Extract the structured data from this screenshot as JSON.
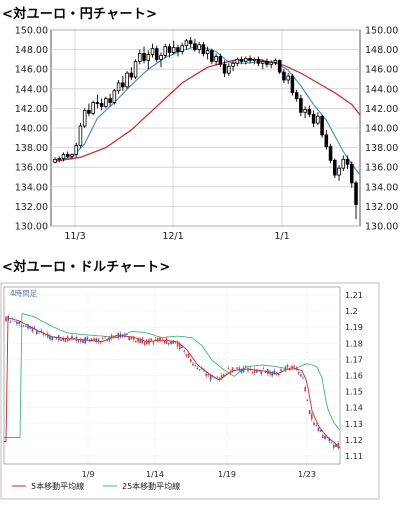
{
  "chart_data": [
    {
      "type": "candlestick",
      "title": "<対ユーロ・円チャート>",
      "y_ticks": [
        150.0,
        148.0,
        146.0,
        144.0,
        142.0,
        140.0,
        138.0,
        136.0,
        134.0,
        132.0,
        130.0
      ],
      "ylim": [
        130,
        150
      ],
      "x_ticks": [
        "11/3",
        "12/1",
        "1/1"
      ],
      "grid": true,
      "candles": [
        [
          136.5,
          137.0,
          136.4,
          136.8
        ],
        [
          136.8,
          137.1,
          136.5,
          136.9
        ],
        [
          136.9,
          137.5,
          136.6,
          137.3
        ],
        [
          137.3,
          137.6,
          136.9,
          137.1
        ],
        [
          137.1,
          137.4,
          136.8,
          137.3
        ],
        [
          137.3,
          138.5,
          137.0,
          138.2
        ],
        [
          138.2,
          140.5,
          138.0,
          140.2
        ],
        [
          140.2,
          142.0,
          140.0,
          141.8
        ],
        [
          141.8,
          142.5,
          141.2,
          141.5
        ],
        [
          141.5,
          142.8,
          141.3,
          142.6
        ],
        [
          142.6,
          143.4,
          142.0,
          142.5
        ],
        [
          142.5,
          143.0,
          141.8,
          142.2
        ],
        [
          142.2,
          143.2,
          142.0,
          143.0
        ],
        [
          143.0,
          143.5,
          142.2,
          142.6
        ],
        [
          142.6,
          144.0,
          142.4,
          143.8
        ],
        [
          143.8,
          144.9,
          143.5,
          144.6
        ],
        [
          144.6,
          145.3,
          143.8,
          144.2
        ],
        [
          144.2,
          145.8,
          144.0,
          145.6
        ],
        [
          145.6,
          146.2,
          144.9,
          145.2
        ],
        [
          145.2,
          147.0,
          145.0,
          146.8
        ],
        [
          146.8,
          148.0,
          146.5,
          147.6
        ],
        [
          147.6,
          148.3,
          146.6,
          146.9
        ],
        [
          146.9,
          147.9,
          146.0,
          147.5
        ],
        [
          147.5,
          148.6,
          147.2,
          148.1
        ],
        [
          148.1,
          148.4,
          146.7,
          147.0
        ],
        [
          147.0,
          147.7,
          146.2,
          147.4
        ],
        [
          147.4,
          148.6,
          147.1,
          148.3
        ],
        [
          148.3,
          148.6,
          147.2,
          147.7
        ],
        [
          147.7,
          148.9,
          147.5,
          148.2
        ],
        [
          148.2,
          148.5,
          147.3,
          147.8
        ],
        [
          147.8,
          148.7,
          147.5,
          148.4
        ],
        [
          148.4,
          149.1,
          148.0,
          148.9
        ],
        [
          148.9,
          149.3,
          148.2,
          148.6
        ],
        [
          148.6,
          149.1,
          147.8,
          148.0
        ],
        [
          148.0,
          148.8,
          147.6,
          148.5
        ],
        [
          148.5,
          148.8,
          147.3,
          147.6
        ],
        [
          147.6,
          148.3,
          147.0,
          147.9
        ],
        [
          147.9,
          148.1,
          146.5,
          146.8
        ],
        [
          146.8,
          147.6,
          146.4,
          147.3
        ],
        [
          147.3,
          147.6,
          146.2,
          146.5
        ],
        [
          146.5,
          146.9,
          145.2,
          145.6
        ],
        [
          145.6,
          146.6,
          145.3,
          146.3
        ],
        [
          146.3,
          146.9,
          145.8,
          146.6
        ],
        [
          146.6,
          147.2,
          146.3,
          147.0
        ],
        [
          147.0,
          147.3,
          146.5,
          146.8
        ],
        [
          146.8,
          147.3,
          146.5,
          147.1
        ],
        [
          147.1,
          147.4,
          146.6,
          146.9
        ],
        [
          146.9,
          147.2,
          146.5,
          147.0
        ],
        [
          147.0,
          147.3,
          146.3,
          146.6
        ],
        [
          146.6,
          147.0,
          146.0,
          146.8
        ],
        [
          146.8,
          147.1,
          146.2,
          146.5
        ],
        [
          146.5,
          146.9,
          146.1,
          146.7
        ],
        [
          146.7,
          147.1,
          146.4,
          146.9
        ],
        [
          146.9,
          147.0,
          145.5,
          145.7
        ],
        [
          145.7,
          146.0,
          144.6,
          144.9
        ],
        [
          144.9,
          145.6,
          144.5,
          145.3
        ],
        [
          145.3,
          145.5,
          143.3,
          143.6
        ],
        [
          143.6,
          143.9,
          142.7,
          143.0
        ],
        [
          143.0,
          143.4,
          141.2,
          141.6
        ],
        [
          141.6,
          142.2,
          141.0,
          141.9
        ],
        [
          141.9,
          142.3,
          141.1,
          141.4
        ],
        [
          141.4,
          141.8,
          140.1,
          140.5
        ],
        [
          140.5,
          141.6,
          140.3,
          141.2
        ],
        [
          141.2,
          141.3,
          139.0,
          139.3
        ],
        [
          139.3,
          139.8,
          137.8,
          138.1
        ],
        [
          138.1,
          138.4,
          136.4,
          136.7
        ],
        [
          136.7,
          136.9,
          134.9,
          135.2
        ],
        [
          135.2,
          136.2,
          134.6,
          135.9
        ],
        [
          135.9,
          137.2,
          135.6,
          136.8
        ],
        [
          136.8,
          137.2,
          135.8,
          136.3
        ],
        [
          136.3,
          136.6,
          133.9,
          134.4
        ],
        [
          134.4,
          134.6,
          130.7,
          132.2
        ]
      ],
      "series": [
        {
          "name": "",
          "color": "#4a90d9",
          "points": [
            [
              0,
              136.7
            ],
            [
              4,
              137.0
            ],
            [
              7,
              138.4
            ],
            [
              10,
              141.0
            ],
            [
              14,
              142.6
            ],
            [
              18,
              144.4
            ],
            [
              22,
              146.0
            ],
            [
              26,
              147.2
            ],
            [
              30,
              147.9
            ],
            [
              34,
              148.4
            ],
            [
              38,
              147.8
            ],
            [
              41,
              146.7
            ],
            [
              45,
              146.6
            ],
            [
              49,
              146.8
            ],
            [
              52,
              146.7
            ],
            [
              55,
              145.9
            ],
            [
              58,
              144.3
            ],
            [
              61,
              142.4
            ],
            [
              64,
              140.8
            ],
            [
              66,
              139.2
            ],
            [
              68,
              137.6
            ],
            [
              70,
              136.3
            ],
            [
              72,
              135.2
            ]
          ]
        },
        {
          "name": "",
          "color": "#dd2020",
          "points": [
            [
              0,
              136.6
            ],
            [
              6,
              137.0
            ],
            [
              12,
              138.0
            ],
            [
              18,
              139.8
            ],
            [
              24,
              142.2
            ],
            [
              30,
              144.6
            ],
            [
              36,
              146.2
            ],
            [
              42,
              146.9
            ],
            [
              48,
              147.0
            ],
            [
              54,
              146.4
            ],
            [
              58,
              145.6
            ],
            [
              62,
              144.6
            ],
            [
              66,
              143.6
            ],
            [
              70,
              142.4
            ],
            [
              72,
              141.3
            ]
          ]
        }
      ]
    },
    {
      "type": "candlestick",
      "title": "<対ユーロ・ドルチャート>",
      "period_label": "4時間足",
      "y_ticks": [
        1.21,
        1.2,
        1.19,
        1.18,
        1.17,
        1.16,
        1.15,
        1.14,
        1.13,
        1.12,
        1.11
      ],
      "ylim": [
        1.105,
        1.215
      ],
      "x_ticks": [
        "1/9",
        "1/14",
        "1/19",
        "1/23"
      ],
      "grid": true,
      "legend": [
        "5本移動平均線",
        "25本移動平均線"
      ],
      "legend_position": "bottom",
      "series": [
        {
          "name": "5本移動平均線",
          "color": "#dd2020"
        },
        {
          "name": "25本移動平均線",
          "color": "#3cb878"
        }
      ]
    }
  ]
}
